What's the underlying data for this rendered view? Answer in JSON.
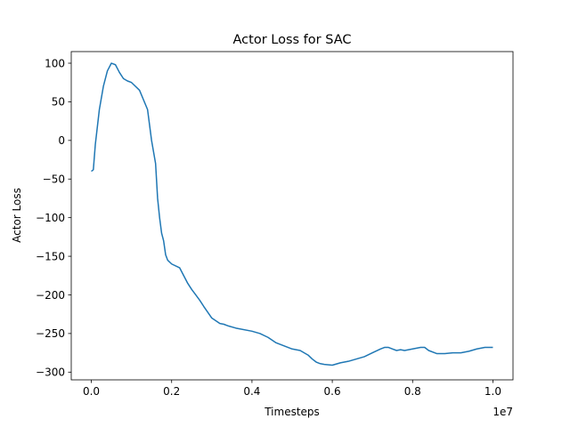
{
  "chart_data": {
    "type": "line",
    "title": "Actor Loss for SAC",
    "xlabel": "Timesteps",
    "ylabel": "Actor Loss",
    "x_offset_text": "1e7",
    "xlim": [
      -0.05,
      1.05
    ],
    "ylim": [
      -310,
      115
    ],
    "x_ticks": [
      0.0,
      0.2,
      0.4,
      0.6,
      0.8,
      1.0
    ],
    "x_tick_labels": [
      "0.0",
      "0.2",
      "0.4",
      "0.6",
      "0.8",
      "1.0"
    ],
    "y_ticks": [
      100,
      50,
      0,
      -50,
      -100,
      -150,
      -200,
      -250,
      -300
    ],
    "y_tick_labels": [
      "100",
      "50",
      "0",
      "−50",
      "−100",
      "−150",
      "−200",
      "−250",
      "−300"
    ],
    "grid": false,
    "series": [
      {
        "color": "#1f77b4",
        "x": [
          0.0,
          0.005,
          0.01,
          0.02,
          0.03,
          0.04,
          0.05,
          0.06,
          0.07,
          0.08,
          0.09,
          0.1,
          0.12,
          0.14,
          0.15,
          0.155,
          0.16,
          0.165,
          0.17,
          0.175,
          0.18,
          0.185,
          0.19,
          0.2,
          0.22,
          0.24,
          0.25,
          0.26,
          0.27,
          0.28,
          0.3,
          0.32,
          0.33,
          0.34,
          0.36,
          0.4,
          0.42,
          0.44,
          0.46,
          0.48,
          0.5,
          0.52,
          0.54,
          0.55,
          0.56,
          0.57,
          0.58,
          0.6,
          0.62,
          0.64,
          0.66,
          0.68,
          0.7,
          0.72,
          0.73,
          0.74,
          0.75,
          0.76,
          0.77,
          0.78,
          0.8,
          0.82,
          0.83,
          0.84,
          0.86,
          0.88,
          0.9,
          0.92,
          0.94,
          0.96,
          0.98,
          1.0
        ],
        "y": [
          -40,
          -38,
          -5,
          40,
          70,
          90,
          100,
          98,
          88,
          80,
          77,
          75,
          65,
          40,
          0,
          -15,
          -30,
          -75,
          -100,
          -120,
          -130,
          -148,
          -155,
          -160,
          -165,
          -185,
          -193,
          -200,
          -207,
          -215,
          -230,
          -237,
          -238,
          -240,
          -243,
          -247,
          -250,
          -255,
          -262,
          -266,
          -270,
          -272,
          -278,
          -283,
          -287,
          -289,
          -290,
          -291,
          -288,
          -286,
          -283,
          -280,
          -275,
          -270,
          -268,
          -268,
          -270,
          -272,
          -271,
          -272,
          -270,
          -268,
          -268,
          -272,
          -276,
          -276,
          -275,
          -275,
          -273,
          -270,
          -268,
          -268
        ]
      }
    ]
  }
}
